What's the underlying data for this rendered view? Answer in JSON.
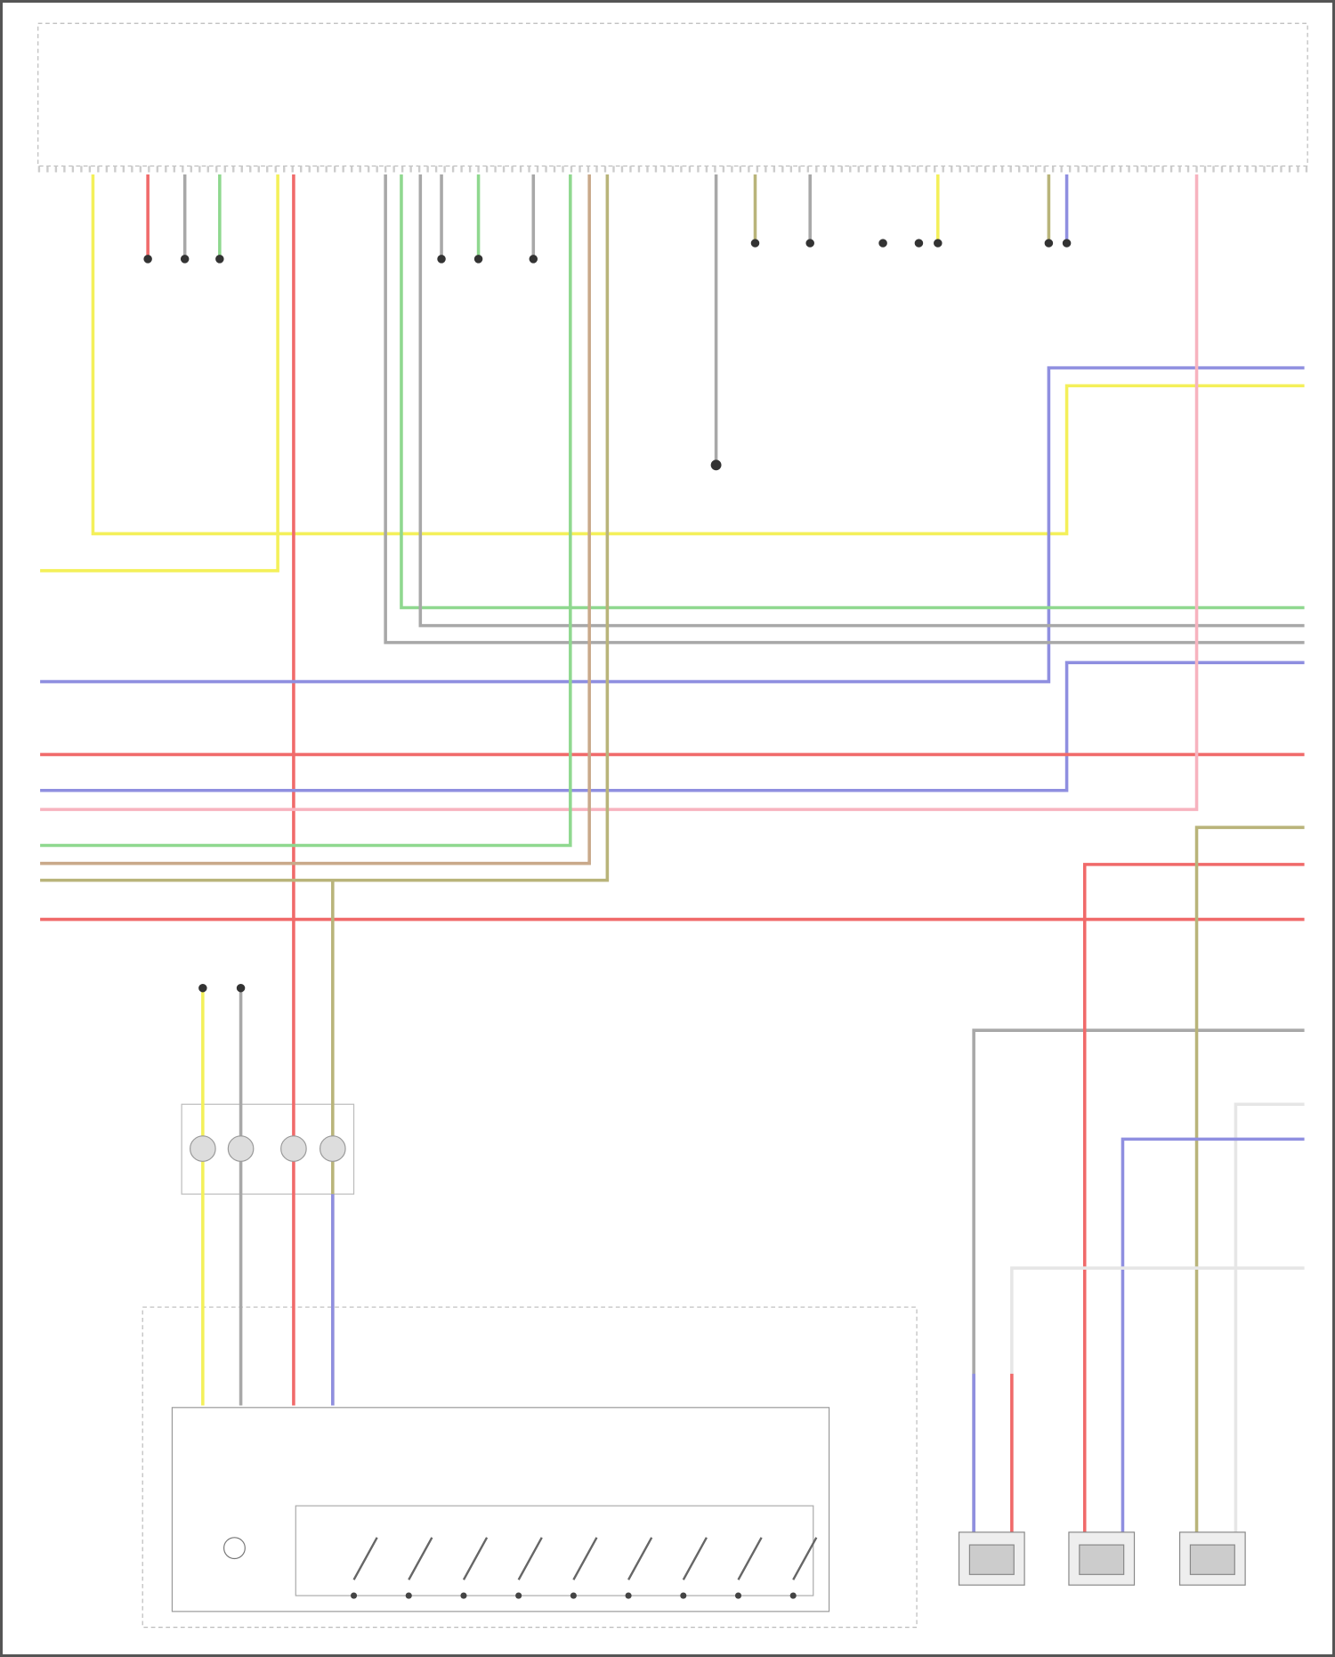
{
  "diagram": {
    "title": "",
    "wire_colors": {
      "yellow": "#f4f05a",
      "red": "#f06a6a",
      "pink": "#f7b3bf",
      "blue": "#8f8fe0",
      "green": "#8fd88f",
      "gray": "#a8a8a8",
      "brown": "#c9a98a",
      "olive": "#b9b47a",
      "white": "#e6e6e6"
    },
    "components": [
      {
        "id": "head-module",
        "label": ""
      },
      {
        "id": "inline-connector",
        "label": ""
      },
      {
        "id": "steering-switch-assembly",
        "label": ""
      },
      {
        "id": "speaker-1",
        "label": ""
      },
      {
        "id": "speaker-2",
        "label": ""
      },
      {
        "id": "speaker-3",
        "label": ""
      }
    ]
  }
}
